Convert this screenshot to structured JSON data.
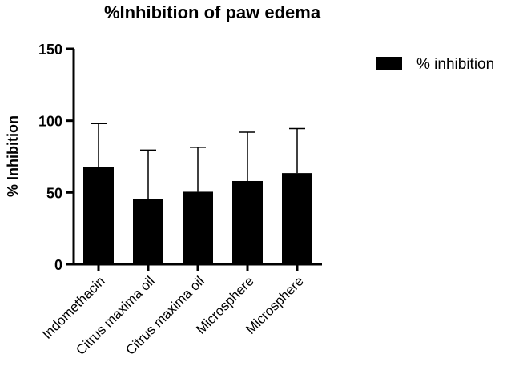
{
  "chart_data": {
    "type": "bar",
    "title": "%Inhibition of paw edema",
    "xlabel": "",
    "ylabel": "% Inhibition",
    "ylim": [
      0,
      150
    ],
    "yticks": [
      "0",
      "50",
      "100",
      "150"
    ],
    "categories": [
      "Indomethacin",
      "Citrus maxima oil",
      "Citrus maxima oil",
      "Microsphere",
      "Microsphere"
    ],
    "series": [
      {
        "name": "% inhibition",
        "values": [
          68,
          45.5,
          50.5,
          58,
          63.5
        ],
        "error": [
          30,
          34,
          31,
          34,
          31
        ],
        "color": "#000000"
      }
    ],
    "legend": {
      "position": "top-right"
    },
    "grid": false
  }
}
